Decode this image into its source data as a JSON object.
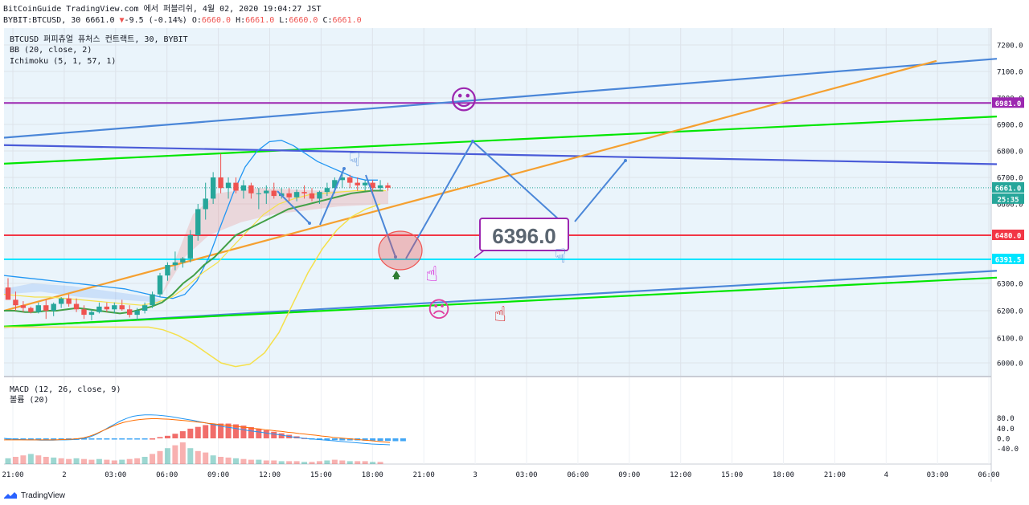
{
  "header": {
    "line1": "BitCoinGuide TradingView.com 에서 퍼블리쉬, 4월 02, 2020 19:04:27 JST",
    "symbol": "BYBIT:BTCUSD, 30",
    "last": "6661.0",
    "change": "-9.5 (-0.14%)",
    "o_label": "O:",
    "o": "6660.0",
    "h_label": "H:",
    "h": "6661.0",
    "l_label": "L:",
    "l": "6660.0",
    "c_label": "C:",
    "c": "6661.0"
  },
  "legend": {
    "main": "BTCUSD 퍼피츄얼 퓨처스 컨트랙트, 30, BYBIT",
    "bb": "BB (20, close, 2)",
    "ichimoku": "Ichimoku (5, 1, 57, 1)",
    "macd": "MACD (12, 26, close, 9)",
    "volume": "볼륨 (20)"
  },
  "footer": {
    "brand": "TradingView"
  },
  "annotation": {
    "callout_value": "6396.0"
  },
  "colors": {
    "candle_up": "#26a69a",
    "candle_down": "#ef5350",
    "purple_line": "#9c27b0",
    "red_line": "#f23645",
    "cyan_line": "#00e5ff",
    "green_line": "#00e600",
    "blue_line": "#4a86d8",
    "navy_line": "#4a5bd8",
    "orange_line": "#f5a030",
    "arrow": "#4a86d8",
    "macd_line": "#2196f3",
    "signal_line": "#ff6d00"
  },
  "chart_data": [
    {
      "type": "candlestick",
      "title": "BTCUSD 퍼피츄얼 퓨처스 컨트랙트, 30, BYBIT",
      "ylim": [
        5960,
        7260
      ],
      "y_ticks": [
        "7200.0",
        "7100.0",
        "7000.0",
        "6900.0",
        "6800.0",
        "6700.0",
        "6600.0",
        "6300.0",
        "6200.0",
        "6100.0",
        "6000.0"
      ],
      "x_ticks": [
        "21:00",
        "2",
        "03:00",
        "06:00",
        "09:00",
        "12:00",
        "15:00",
        "18:00",
        "21:00",
        "3",
        "03:00",
        "06:00",
        "09:00",
        "12:00",
        "15:00",
        "18:00",
        "21:00",
        "4",
        "03:00",
        "06:00"
      ],
      "price_labels": [
        {
          "value": "6981.0",
          "color": "#9c27b0"
        },
        {
          "value": "6661.0",
          "color": "#26a69a"
        },
        {
          "value": "25:35",
          "color": "#26a69a"
        },
        {
          "value": "6480.0",
          "color": "#f23645"
        },
        {
          "value": "6391.5",
          "color": "#00e5ff"
        }
      ],
      "candles": [
        [
          6285,
          6320,
          6250,
          6240
        ],
        [
          6240,
          6270,
          6200,
          6220
        ],
        [
          6220,
          6235,
          6195,
          6210
        ],
        [
          6210,
          6215,
          6190,
          6195
        ],
        [
          6195,
          6230,
          6190,
          6220
        ],
        [
          6220,
          6240,
          6170,
          6200
        ],
        [
          6200,
          6230,
          6180,
          6225
        ],
        [
          6225,
          6250,
          6210,
          6245
        ],
        [
          6245,
          6260,
          6215,
          6225
        ],
        [
          6225,
          6245,
          6195,
          6205
        ],
        [
          6205,
          6220,
          6170,
          6185
        ],
        [
          6185,
          6205,
          6165,
          6195
        ],
        [
          6195,
          6230,
          6190,
          6215
        ],
        [
          6215,
          6230,
          6195,
          6205
        ],
        [
          6205,
          6230,
          6190,
          6220
        ],
        [
          6220,
          6240,
          6200,
          6205
        ],
        [
          6205,
          6220,
          6175,
          6185
        ],
        [
          6185,
          6210,
          6165,
          6200
        ],
        [
          6200,
          6230,
          6190,
          6220
        ],
        [
          6220,
          6270,
          6210,
          6260
        ],
        [
          6260,
          6340,
          6250,
          6330
        ],
        [
          6330,
          6380,
          6310,
          6370
        ],
        [
          6370,
          6420,
          6350,
          6380
        ],
        [
          6380,
          6400,
          6360,
          6395
        ],
        [
          6395,
          6500,
          6380,
          6480
        ],
        [
          6480,
          6600,
          6460,
          6580
        ],
        [
          6580,
          6680,
          6540,
          6620
        ],
        [
          6620,
          6720,
          6600,
          6700
        ],
        [
          6700,
          6790,
          6640,
          6660
        ],
        [
          6660,
          6700,
          6620,
          6680
        ],
        [
          6680,
          6700,
          6640,
          6650
        ],
        [
          6650,
          6690,
          6620,
          6670
        ],
        [
          6670,
          6680,
          6620,
          6640
        ],
        [
          6640,
          6660,
          6580,
          6640
        ],
        [
          6640,
          6670,
          6600,
          6650
        ],
        [
          6650,
          6680,
          6620,
          6630
        ],
        [
          6630,
          6660,
          6620,
          6640
        ],
        [
          6640,
          6660,
          6610,
          6625
        ],
        [
          6625,
          6655,
          6610,
          6645
        ],
        [
          6645,
          6670,
          6620,
          6640
        ],
        [
          6640,
          6660,
          6610,
          6620
        ],
        [
          6620,
          6650,
          6600,
          6645
        ],
        [
          6645,
          6680,
          6630,
          6660
        ],
        [
          6660,
          6700,
          6640,
          6690
        ],
        [
          6690,
          6720,
          6660,
          6700
        ],
        [
          6700,
          6710,
          6660,
          6680
        ],
        [
          6680,
          6700,
          6650,
          6670
        ],
        [
          6670,
          6690,
          6650,
          6680
        ],
        [
          6680,
          6690,
          6640,
          6660
        ],
        [
          6660,
          6690,
          6650,
          6670
        ],
        [
          6670,
          6680,
          6650,
          6661
        ]
      ],
      "bb_upper": [
        6330,
        6325,
        6320,
        6315,
        6310,
        6305,
        6300,
        6295,
        6290,
        6285,
        6280,
        6270,
        6260,
        6250,
        6245,
        6260,
        6310,
        6400,
        6520,
        6640,
        6740,
        6800,
        6835,
        6840,
        6820,
        6790,
        6760,
        6740,
        6720,
        6700,
        6690,
        6690
      ],
      "bb_lower": [
        6140,
        6140,
        6140,
        6140,
        6140,
        6140,
        6140,
        6140,
        6140,
        6140,
        6140,
        6130,
        6110,
        6080,
        6040,
        6000,
        5985,
        5995,
        6040,
        6120,
        6230,
        6340,
        6430,
        6500,
        6550,
        6580,
        6600
      ],
      "ichimoku_lagging": [
        6260,
        6255,
        6250,
        6250,
        6245,
        6240,
        6235,
        6230,
        6225,
        6220,
        6230,
        6250,
        6290,
        6340,
        6380,
        6440,
        6500,
        6560,
        6600,
        6620,
        6635,
        6640,
        6645,
        6650,
        6650,
        6650
      ],
      "ichimoku_conversion": [
        6200,
        6200,
        6195,
        6195,
        6200,
        6200,
        6205,
        6210,
        6205,
        6200,
        6195,
        6190,
        6195,
        6205,
        6215,
        6230,
        6260,
        6300,
        6330,
        6370,
        6400,
        6440,
        6480,
        6500,
        6520,
        6540,
        6560,
        6580,
        6590,
        6600,
        6610,
        6620,
        6630,
        6640,
        6645,
        6650,
        6650
      ],
      "lines": [
        {
          "name": "resistance-upper-blue",
          "points": [
            [
              0,
              6850
            ],
            [
              1235,
              7148
            ]
          ]
        },
        {
          "name": "green-channel-top",
          "points": [
            [
              0,
              6752
            ],
            [
              1235,
              6930
            ]
          ]
        },
        {
          "name": "navy-downtrend",
          "points": [
            [
              0,
              6822
            ],
            [
              1235,
              6750
            ]
          ]
        },
        {
          "name": "orange-trend",
          "points": [
            [
              0,
              6200
            ],
            [
              1160,
              7140
            ]
          ]
        },
        {
          "name": "blue-support",
          "points": [
            [
              0,
              6140
            ],
            [
              1235,
              6348
            ]
          ]
        },
        {
          "name": "green-channel-bottom",
          "points": [
            [
              0,
              6142
            ],
            [
              1235,
              6322
            ]
          ]
        }
      ],
      "horizontal_levels": [
        6981.0,
        6480.0,
        6391.5
      ]
    },
    {
      "type": "bar",
      "title": "MACD (12, 26, close, 9)",
      "ylim": [
        -50,
        110
      ],
      "y_ticks": [
        "80.0",
        "40.0",
        "0.0",
        "-40.0"
      ],
      "histogram": [
        -2,
        -3,
        -4,
        -5,
        -5,
        -6,
        -6,
        -6,
        -6,
        -6,
        -5,
        -5,
        -4,
        -4,
        -3,
        -3,
        -2,
        -2,
        -1,
        0,
        5,
        10,
        18,
        28,
        38,
        45,
        52,
        56,
        58,
        58,
        55,
        50,
        44,
        38,
        32,
        26,
        20,
        14,
        8,
        2,
        -4,
        -6,
        -7,
        -7,
        -8,
        -8,
        -8,
        -9,
        -9,
        -10,
        -10,
        -11,
        -11
      ],
      "macd_line": [
        0,
        -2,
        -4,
        -5,
        -6,
        -6,
        -7,
        -7,
        -7,
        -6,
        -6,
        -5,
        -3,
        0,
        5,
        15,
        28,
        42,
        55,
        68,
        78,
        86,
        90,
        92,
        92,
        91,
        89,
        86,
        82,
        78,
        74,
        70,
        65,
        60,
        55,
        50,
        45,
        42,
        38,
        34,
        30,
        27,
        24,
        20,
        17,
        14,
        10,
        6,
        3,
        0,
        -2,
        -4,
        -6,
        -8,
        -10,
        -12,
        -14,
        -16,
        -18,
        -20,
        -22,
        -23,
        -24,
        -25
      ],
      "signal_line": [
        -6,
        -6,
        -6,
        -6,
        -6,
        -6,
        -6,
        -6,
        -6,
        -6,
        -5,
        -4,
        -3,
        -1,
        2,
        8,
        16,
        26,
        36,
        46,
        55,
        62,
        67,
        71,
        74,
        76,
        77,
        77,
        76,
        75,
        73,
        71,
        69,
        67,
        64,
        62,
        59,
        57,
        54,
        52,
        49,
        47,
        44,
        42,
        39,
        37,
        34,
        32,
        29,
        27,
        24,
        22,
        19,
        17,
        14,
        12,
        9,
        7,
        4,
        2,
        0,
        -2,
        -4,
        -6,
        -8,
        -10,
        -12,
        -14,
        -16
      ]
    }
  ]
}
